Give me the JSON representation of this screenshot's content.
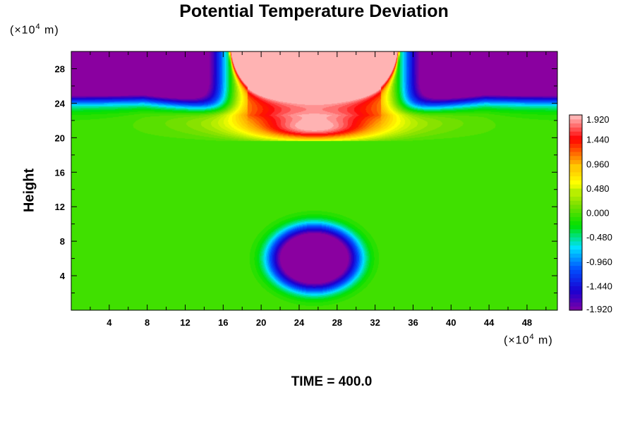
{
  "title": "Potential Temperature Deviation",
  "time_label": "TIME = 400.0",
  "chart_data": {
    "type": "heatmap",
    "title": "Potential Temperature Deviation",
    "ylabel": "Height",
    "x_unit_label": "(×10",
    "x_unit_exp": "4",
    "x_unit_tail": " m)",
    "y_unit_label": "(×10",
    "y_unit_exp": "4",
    "y_unit_tail": " m)",
    "xlim": [
      0,
      51.2
    ],
    "ylim": [
      0,
      30
    ],
    "x_ticks": [
      "4",
      "8",
      "12",
      "16",
      "20",
      "24",
      "28",
      "32",
      "36",
      "40",
      "44",
      "48"
    ],
    "y_ticks": [
      "4",
      "8",
      "12",
      "16",
      "20",
      "24",
      "28"
    ],
    "colorbar": {
      "min": -1.92,
      "max": 1.92,
      "step": 0.08,
      "tick_labels": [
        "1.920",
        "1.440",
        "0.960",
        "0.480",
        "0.000",
        "-0.480",
        "-0.960",
        "-1.440",
        "-1.920"
      ],
      "colors": [
        "#8a00a0",
        "#1a00d0",
        "#0050ff",
        "#00e0ff",
        "#00e000",
        "#80e000",
        "#ffff00",
        "#ffa000",
        "#ff0000",
        "#ffb3b3"
      ]
    },
    "features": [
      {
        "name": "upper-left-cold",
        "x_center": 4,
        "y_top": 30,
        "y_bottom": 24.5,
        "value": -1.92
      },
      {
        "name": "upper-right-cold",
        "x_center": 47,
        "y_top": 30,
        "y_bottom": 24.5,
        "value": -1.92
      },
      {
        "name": "upper-center-warm",
        "x_center": 25.6,
        "y_top": 30,
        "y_bottom": 25,
        "value": 1.92
      },
      {
        "name": "mid-warm-band",
        "x_center": 25.6,
        "y_center": 20.8,
        "value": 1.5
      },
      {
        "name": "lower-cold-bubble",
        "x_center": 25.6,
        "y_center": 6,
        "value": -1.92
      }
    ]
  }
}
